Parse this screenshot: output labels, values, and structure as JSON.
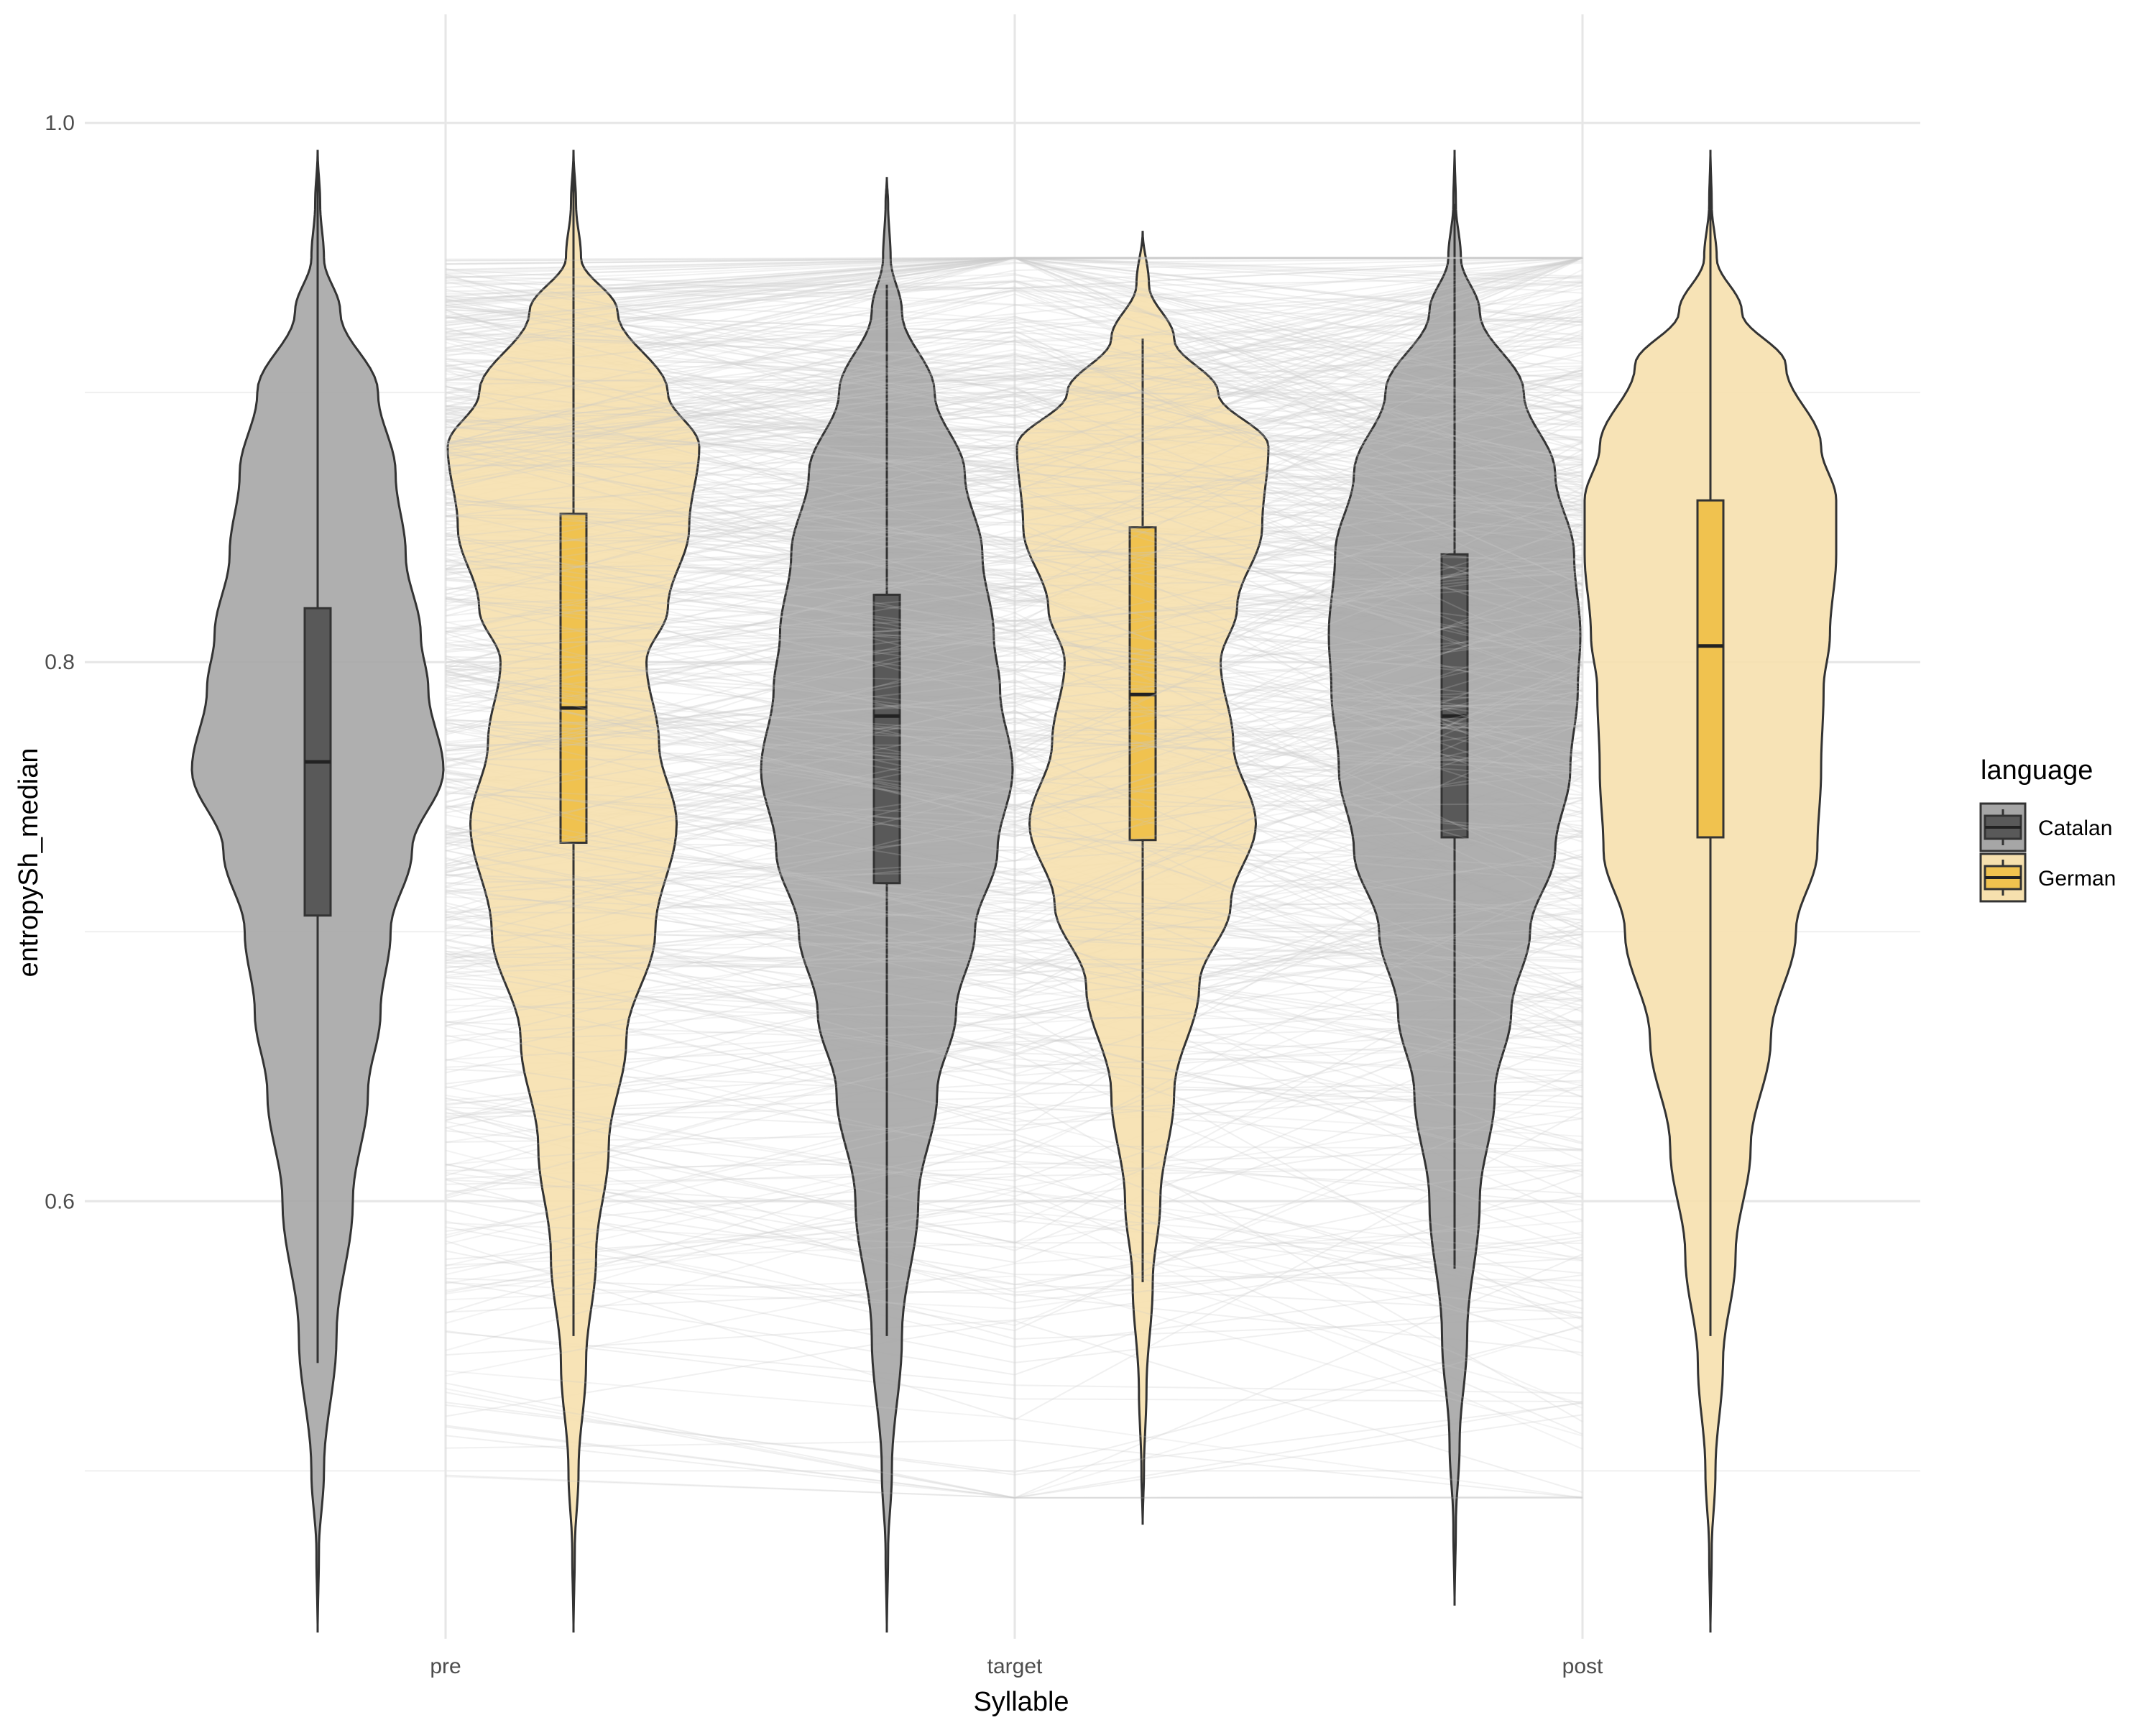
{
  "chart_data": {
    "type": "violin",
    "xlabel": "Syllable",
    "ylabel": "entropySh_median",
    "categories": [
      "pre",
      "target",
      "post"
    ],
    "ylim": [
      0.43,
      1.04
    ],
    "yticks": [
      0.6,
      0.8,
      1.0
    ],
    "ytick_labels": [
      "0.6",
      "0.8",
      "1.0"
    ],
    "grid": true,
    "legend": {
      "title": "language",
      "position": "right",
      "entries": [
        "Catalan",
        "German"
      ]
    },
    "colors": {
      "Catalan": "#595959",
      "German": "#f0c24f",
      "Catalan_fill": "#a6a6a6",
      "German_fill": "#f6e0ae"
    },
    "series": [
      {
        "name": "Catalan",
        "violins": [
          {
            "category": "pre",
            "min": 0.44,
            "max": 0.99,
            "q1": 0.706,
            "median": 0.763,
            "q3": 0.82,
            "whisker_low": 0.54,
            "whisker_high": 0.99,
            "profile_y": [
              0.44,
              0.47,
              0.5,
              0.55,
              0.6,
              0.64,
              0.67,
              0.7,
              0.73,
              0.76,
              0.79,
              0.81,
              0.84,
              0.87,
              0.9,
              0.93,
              0.95,
              0.97,
              0.99
            ],
            "profile_w": [
              0.0,
              0.01,
              0.05,
              0.15,
              0.28,
              0.4,
              0.5,
              0.58,
              0.75,
              1.0,
              0.88,
              0.82,
              0.7,
              0.62,
              0.48,
              0.18,
              0.05,
              0.02,
              0.0
            ]
          },
          {
            "category": "target",
            "min": 0.44,
            "max": 0.98,
            "q1": 0.718,
            "median": 0.78,
            "q3": 0.825,
            "whisker_low": 0.55,
            "whisker_high": 0.94,
            "profile_y": [
              0.44,
              0.47,
              0.5,
              0.55,
              0.6,
              0.64,
              0.67,
              0.7,
              0.73,
              0.76,
              0.79,
              0.81,
              0.84,
              0.87,
              0.9,
              0.93,
              0.95,
              0.97,
              0.98
            ],
            "profile_w": [
              0.0,
              0.01,
              0.04,
              0.12,
              0.25,
              0.4,
              0.55,
              0.7,
              0.88,
              1.0,
              0.9,
              0.85,
              0.76,
              0.62,
              0.38,
              0.12,
              0.03,
              0.01,
              0.0
            ]
          },
          {
            "category": "post",
            "min": 0.45,
            "max": 0.99,
            "q1": 0.735,
            "median": 0.78,
            "q3": 0.84,
            "whisker_low": 0.575,
            "whisker_high": 0.97,
            "profile_y": [
              0.45,
              0.48,
              0.51,
              0.55,
              0.6,
              0.64,
              0.67,
              0.7,
              0.73,
              0.76,
              0.79,
              0.81,
              0.84,
              0.87,
              0.9,
              0.93,
              0.95,
              0.97,
              0.99
            ],
            "profile_w": [
              0.0,
              0.01,
              0.04,
              0.1,
              0.2,
              0.32,
              0.45,
              0.6,
              0.8,
              0.92,
              0.98,
              1.0,
              0.95,
              0.8,
              0.55,
              0.2,
              0.05,
              0.01,
              0.0
            ]
          }
        ]
      },
      {
        "name": "German",
        "violins": [
          {
            "category": "pre",
            "min": 0.44,
            "max": 0.99,
            "q1": 0.733,
            "median": 0.783,
            "q3": 0.855,
            "whisker_low": 0.55,
            "whisker_high": 0.99,
            "profile_y": [
              0.44,
              0.47,
              0.5,
              0.54,
              0.58,
              0.62,
              0.66,
              0.7,
              0.74,
              0.77,
              0.8,
              0.82,
              0.85,
              0.88,
              0.9,
              0.93,
              0.95,
              0.97,
              0.99
            ],
            "profile_w": [
              0.0,
              0.01,
              0.04,
              0.1,
              0.18,
              0.28,
              0.42,
              0.65,
              0.82,
              0.68,
              0.58,
              0.75,
              0.92,
              1.0,
              0.75,
              0.35,
              0.06,
              0.02,
              0.0
            ]
          },
          {
            "category": "target",
            "min": 0.48,
            "max": 0.96,
            "q1": 0.734,
            "median": 0.788,
            "q3": 0.85,
            "whisker_low": 0.57,
            "whisker_high": 0.92,
            "profile_y": [
              0.48,
              0.5,
              0.53,
              0.57,
              0.6,
              0.64,
              0.68,
              0.71,
              0.74,
              0.77,
              0.8,
              0.82,
              0.85,
              0.88,
              0.9,
              0.92,
              0.94,
              0.96
            ],
            "profile_w": [
              0.0,
              0.01,
              0.03,
              0.08,
              0.14,
              0.25,
              0.45,
              0.7,
              0.9,
              0.72,
              0.62,
              0.75,
              0.95,
              1.0,
              0.6,
              0.25,
              0.05,
              0.0
            ]
          },
          {
            "category": "post",
            "min": 0.44,
            "max": 0.99,
            "q1": 0.735,
            "median": 0.806,
            "q3": 0.86,
            "whisker_low": 0.55,
            "whisker_high": 0.99,
            "profile_y": [
              0.44,
              0.47,
              0.5,
              0.54,
              0.58,
              0.62,
              0.66,
              0.7,
              0.73,
              0.76,
              0.79,
              0.81,
              0.84,
              0.86,
              0.88,
              0.91,
              0.93,
              0.95,
              0.97,
              0.99
            ],
            "profile_w": [
              0.0,
              0.01,
              0.04,
              0.1,
              0.2,
              0.32,
              0.48,
              0.68,
              0.85,
              0.88,
              0.9,
              0.95,
              1.0,
              1.0,
              0.88,
              0.6,
              0.25,
              0.05,
              0.01,
              0.0
            ]
          }
        ]
      }
    ],
    "background_lines": {
      "count": 380,
      "color": "#d4d4d4",
      "y_range": [
        0.49,
        0.95
      ]
    }
  }
}
